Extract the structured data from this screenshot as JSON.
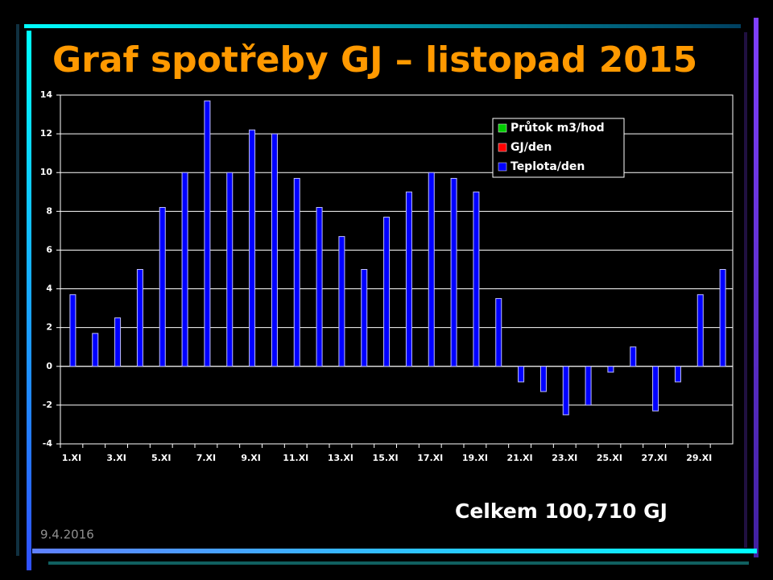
{
  "chart_data": {
    "type": "bar",
    "title": "Graf spotřeby GJ – listopad 2015",
    "annotation": "Celkem 100,710 GJ",
    "date": "9.4.2016",
    "categories": [
      "1.XI",
      null,
      "3.XI",
      null,
      "5.XI",
      null,
      "7.XI",
      null,
      "9.XI",
      null,
      "11.XI",
      null,
      "13.XI",
      null,
      "15.XI",
      null,
      "17.XI",
      null,
      "19.XI",
      null,
      "21.XI",
      null,
      "23.XI",
      null,
      "25.XI",
      null,
      "27.XI",
      null,
      "29.XI",
      null
    ],
    "series": [
      {
        "name": "Průtok m3/hod",
        "color": "#00cc00",
        "values": [
          null,
          null,
          null,
          null,
          null,
          null,
          null,
          null,
          null,
          null,
          null,
          null,
          null,
          null,
          null,
          null,
          null,
          null,
          null,
          null,
          null,
          null,
          null,
          null,
          null,
          null,
          null,
          null,
          null,
          null
        ]
      },
      {
        "name": "GJ/den",
        "color": "#ff0000",
        "values": [
          null,
          null,
          null,
          null,
          null,
          null,
          null,
          null,
          null,
          null,
          null,
          null,
          null,
          null,
          null,
          null,
          null,
          null,
          null,
          null,
          null,
          null,
          null,
          null,
          null,
          null,
          null,
          null,
          null,
          null
        ]
      },
      {
        "name": "Teplota/den",
        "color": "#0000ff",
        "values": [
          3.7,
          1.7,
          2.5,
          5.0,
          8.2,
          10.0,
          13.7,
          10.0,
          12.2,
          12.0,
          9.7,
          8.2,
          6.7,
          5.0,
          7.7,
          9.0,
          10.0,
          9.7,
          9.0,
          3.5,
          -0.8,
          -1.3,
          -2.5,
          -2.0,
          -0.3,
          1.0,
          -2.3,
          -0.8,
          3.7,
          5.0
        ]
      }
    ],
    "ylim": [
      -4,
      14
    ],
    "yticks": [
      -4,
      -2,
      0,
      2,
      4,
      6,
      8,
      10,
      12,
      14
    ],
    "grid": true,
    "legend": "top-right"
  }
}
